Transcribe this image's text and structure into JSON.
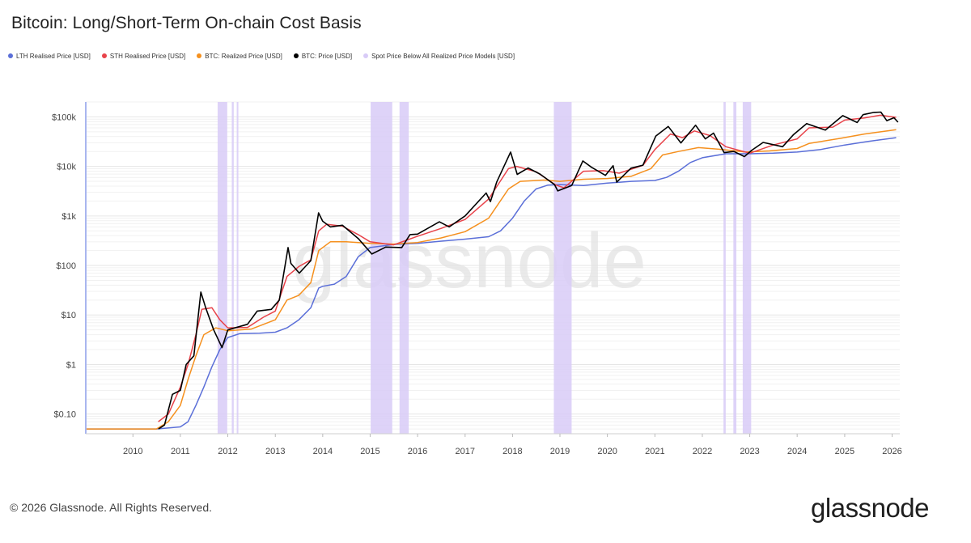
{
  "chart_data": {
    "type": "line",
    "title": "Bitcoin: Long/Short-Term On-chain Cost Basis",
    "y_scale": "log",
    "ylim": [
      0.04,
      200000
    ],
    "xlim": [
      "2009-01-03",
      "2026-03-01"
    ],
    "y_ticks": [
      {
        "value": 0.1,
        "label": "$0.10"
      },
      {
        "value": 1,
        "label": "$1"
      },
      {
        "value": 10,
        "label": "$10"
      },
      {
        "value": 100,
        "label": "$100"
      },
      {
        "value": 1000,
        "label": "$1k"
      },
      {
        "value": 10000,
        "label": "$10k"
      },
      {
        "value": 100000,
        "label": "$100k"
      }
    ],
    "x_ticks": [
      "2010",
      "2011",
      "2012",
      "2013",
      "2014",
      "2015",
      "2016",
      "2017",
      "2018",
      "2019",
      "2020",
      "2021",
      "2022",
      "2023",
      "2024",
      "2025",
      "2026"
    ],
    "grid": true,
    "legend_position": "top-left",
    "watermark": "glassnode",
    "series": [
      {
        "name": "LTH Realised Price [USD]",
        "color": "#5b6fd8",
        "points": [
          [
            "2009-01-03",
            0.05
          ],
          [
            "2010-07-01",
            0.05
          ],
          [
            "2011-01-01",
            0.055
          ],
          [
            "2011-03-01",
            0.07
          ],
          [
            "2011-05-01",
            0.15
          ],
          [
            "2011-07-01",
            0.35
          ],
          [
            "2011-09-01",
            0.9
          ],
          [
            "2011-11-01",
            2.0
          ],
          [
            "2012-01-01",
            3.5
          ],
          [
            "2012-04-01",
            4.2
          ],
          [
            "2012-09-01",
            4.3
          ],
          [
            "2013-01-01",
            4.5
          ],
          [
            "2013-04-01",
            5.5
          ],
          [
            "2013-07-01",
            8
          ],
          [
            "2013-10-01",
            14
          ],
          [
            "2013-12-01",
            35
          ],
          [
            "2014-01-01",
            38
          ],
          [
            "2014-04-01",
            42
          ],
          [
            "2014-07-01",
            60
          ],
          [
            "2014-10-01",
            150
          ],
          [
            "2015-01-01",
            230
          ],
          [
            "2015-07-01",
            265
          ],
          [
            "2016-01-01",
            280
          ],
          [
            "2016-07-01",
            310
          ],
          [
            "2017-01-01",
            340
          ],
          [
            "2017-07-01",
            380
          ],
          [
            "2017-10-01",
            500
          ],
          [
            "2018-01-01",
            900
          ],
          [
            "2018-04-01",
            2000
          ],
          [
            "2018-07-01",
            3500
          ],
          [
            "2018-10-01",
            4200
          ],
          [
            "2019-01-01",
            4300
          ],
          [
            "2019-07-01",
            4100
          ],
          [
            "2020-01-01",
            4600
          ],
          [
            "2020-07-01",
            5000
          ],
          [
            "2021-01-01",
            5200
          ],
          [
            "2021-04-01",
            6000
          ],
          [
            "2021-07-01",
            8000
          ],
          [
            "2021-10-01",
            12000
          ],
          [
            "2022-01-01",
            15000
          ],
          [
            "2022-07-01",
            18000
          ],
          [
            "2023-01-01",
            18000
          ],
          [
            "2023-07-01",
            18500
          ],
          [
            "2024-01-01",
            19500
          ],
          [
            "2024-07-01",
            22000
          ],
          [
            "2025-01-01",
            27000
          ],
          [
            "2025-07-01",
            32000
          ],
          [
            "2026-02-01",
            38000
          ]
        ]
      },
      {
        "name": "STH Realised Price [USD]",
        "color": "#e8434a",
        "points": [
          [
            "2010-07-15",
            0.07
          ],
          [
            "2010-10-01",
            0.1
          ],
          [
            "2011-01-01",
            0.35
          ],
          [
            "2011-03-01",
            1.0
          ],
          [
            "2011-05-01",
            4
          ],
          [
            "2011-06-15",
            13
          ],
          [
            "2011-09-01",
            14
          ],
          [
            "2011-11-01",
            8
          ],
          [
            "2012-01-01",
            5.5
          ],
          [
            "2012-06-01",
            5.6
          ],
          [
            "2012-10-01",
            9
          ],
          [
            "2013-01-01",
            12
          ],
          [
            "2013-04-01",
            60
          ],
          [
            "2013-07-01",
            95
          ],
          [
            "2013-10-01",
            130
          ],
          [
            "2013-12-01",
            500
          ],
          [
            "2014-02-01",
            680
          ],
          [
            "2014-06-01",
            620
          ],
          [
            "2014-10-01",
            420
          ],
          [
            "2015-01-01",
            300
          ],
          [
            "2015-07-01",
            260
          ],
          [
            "2016-01-01",
            390
          ],
          [
            "2016-07-01",
            560
          ],
          [
            "2017-01-01",
            850
          ],
          [
            "2017-07-01",
            2200
          ],
          [
            "2017-12-01",
            9000
          ],
          [
            "2018-02-01",
            10000
          ],
          [
            "2018-07-01",
            7800
          ],
          [
            "2018-12-01",
            4200
          ],
          [
            "2019-02-01",
            3700
          ],
          [
            "2019-07-01",
            8000
          ],
          [
            "2019-12-01",
            8200
          ],
          [
            "2020-04-01",
            7300
          ],
          [
            "2020-10-01",
            10500
          ],
          [
            "2021-01-01",
            22000
          ],
          [
            "2021-05-01",
            45000
          ],
          [
            "2021-08-01",
            38000
          ],
          [
            "2021-11-01",
            52000
          ],
          [
            "2022-03-01",
            42000
          ],
          [
            "2022-07-01",
            25000
          ],
          [
            "2023-01-01",
            18500
          ],
          [
            "2023-07-01",
            27000
          ],
          [
            "2024-01-01",
            36000
          ],
          [
            "2024-04-01",
            60000
          ],
          [
            "2024-10-01",
            62000
          ],
          [
            "2025-01-01",
            86000
          ],
          [
            "2025-06-01",
            95000
          ],
          [
            "2025-10-01",
            108000
          ],
          [
            "2026-02-01",
            98000
          ]
        ]
      },
      {
        "name": "BTC: Realized Price [USD]",
        "color": "#f5901e",
        "points": [
          [
            "2009-01-03",
            0.05
          ],
          [
            "2010-07-01",
            0.05
          ],
          [
            "2010-10-01",
            0.07
          ],
          [
            "2011-01-01",
            0.15
          ],
          [
            "2011-03-01",
            0.5
          ],
          [
            "2011-05-01",
            1.5
          ],
          [
            "2011-07-01",
            4
          ],
          [
            "2011-10-01",
            5.5
          ],
          [
            "2012-01-01",
            4.8
          ],
          [
            "2012-07-01",
            5.2
          ],
          [
            "2013-01-01",
            8
          ],
          [
            "2013-04-01",
            20
          ],
          [
            "2013-07-01",
            25
          ],
          [
            "2013-10-01",
            45
          ],
          [
            "2013-12-01",
            200
          ],
          [
            "2014-03-01",
            300
          ],
          [
            "2014-07-01",
            300
          ],
          [
            "2015-01-01",
            280
          ],
          [
            "2015-07-01",
            270
          ],
          [
            "2016-01-01",
            290
          ],
          [
            "2016-07-01",
            360
          ],
          [
            "2017-01-01",
            480
          ],
          [
            "2017-07-01",
            900
          ],
          [
            "2017-12-01",
            3500
          ],
          [
            "2018-03-01",
            5000
          ],
          [
            "2018-09-01",
            5300
          ],
          [
            "2019-01-01",
            5000
          ],
          [
            "2019-07-01",
            5500
          ],
          [
            "2020-01-01",
            5700
          ],
          [
            "2020-07-01",
            6300
          ],
          [
            "2020-12-01",
            9000
          ],
          [
            "2021-03-01",
            17000
          ],
          [
            "2021-07-01",
            20000
          ],
          [
            "2021-12-01",
            24000
          ],
          [
            "2022-06-01",
            22000
          ],
          [
            "2022-12-01",
            19500
          ],
          [
            "2023-06-01",
            20500
          ],
          [
            "2024-01-01",
            23000
          ],
          [
            "2024-04-01",
            29000
          ],
          [
            "2024-12-01",
            37000
          ],
          [
            "2025-06-01",
            45000
          ],
          [
            "2026-02-01",
            55000
          ]
        ]
      },
      {
        "name": "BTC: Price [USD]",
        "color": "#000000",
        "points": [
          [
            "2010-07-17",
            0.05
          ],
          [
            "2010-09-01",
            0.06
          ],
          [
            "2010-11-01",
            0.25
          ],
          [
            "2011-01-01",
            0.3
          ],
          [
            "2011-02-15",
            1.0
          ],
          [
            "2011-04-15",
            1.5
          ],
          [
            "2011-06-08",
            29
          ],
          [
            "2011-07-15",
            14
          ],
          [
            "2011-09-15",
            5
          ],
          [
            "2011-11-18",
            2.2
          ],
          [
            "2012-01-01",
            5
          ],
          [
            "2012-06-01",
            6.5
          ],
          [
            "2012-08-15",
            12
          ],
          [
            "2012-12-01",
            13
          ],
          [
            "2013-02-01",
            20
          ],
          [
            "2013-04-09",
            230
          ],
          [
            "2013-05-01",
            110
          ],
          [
            "2013-07-05",
            70
          ],
          [
            "2013-10-01",
            125
          ],
          [
            "2013-11-30",
            1150
          ],
          [
            "2014-01-01",
            780
          ],
          [
            "2014-03-01",
            600
          ],
          [
            "2014-06-01",
            650
          ],
          [
            "2014-10-01",
            350
          ],
          [
            "2015-01-14",
            170
          ],
          [
            "2015-05-01",
            235
          ],
          [
            "2015-09-01",
            230
          ],
          [
            "2015-11-04",
            420
          ],
          [
            "2016-01-01",
            430
          ],
          [
            "2016-06-17",
            760
          ],
          [
            "2016-09-01",
            600
          ],
          [
            "2017-01-01",
            1000
          ],
          [
            "2017-06-12",
            2900
          ],
          [
            "2017-07-15",
            1950
          ],
          [
            "2017-09-01",
            4800
          ],
          [
            "2017-12-17",
            19500
          ],
          [
            "2018-02-06",
            6900
          ],
          [
            "2018-05-01",
            9300
          ],
          [
            "2018-08-01",
            7000
          ],
          [
            "2018-11-20",
            4300
          ],
          [
            "2018-12-15",
            3200
          ],
          [
            "2019-04-01",
            4100
          ],
          [
            "2019-06-26",
            12900
          ],
          [
            "2019-09-01",
            9600
          ],
          [
            "2019-12-17",
            6600
          ],
          [
            "2020-02-14",
            10300
          ],
          [
            "2020-03-13",
            4800
          ],
          [
            "2020-07-01",
            9200
          ],
          [
            "2020-10-01",
            10600
          ],
          [
            "2021-01-08",
            41000
          ],
          [
            "2021-04-14",
            64000
          ],
          [
            "2021-07-20",
            29800
          ],
          [
            "2021-11-10",
            68000
          ],
          [
            "2022-01-24",
            36000
          ],
          [
            "2022-03-28",
            47000
          ],
          [
            "2022-06-18",
            19000
          ],
          [
            "2022-09-01",
            20000
          ],
          [
            "2022-11-21",
            15800
          ],
          [
            "2023-01-15",
            21000
          ],
          [
            "2023-04-14",
            30500
          ],
          [
            "2023-09-11",
            25000
          ],
          [
            "2023-12-05",
            44000
          ],
          [
            "2024-03-14",
            73000
          ],
          [
            "2024-08-05",
            54000
          ],
          [
            "2024-12-17",
            106000
          ],
          [
            "2025-04-07",
            77000
          ],
          [
            "2025-05-22",
            111000
          ],
          [
            "2025-08-14",
            123000
          ],
          [
            "2025-10-06",
            125000
          ],
          [
            "2025-11-21",
            84000
          ],
          [
            "2026-01-15",
            96000
          ],
          [
            "2026-02-15",
            78000
          ]
        ]
      }
    ],
    "shaded_regions": {
      "name": "Spot Price Below All Realized Price Models [USD]",
      "color": "#d8cbf7",
      "ranges": [
        [
          "2011-10-15",
          "2011-12-28"
        ],
        [
          "2012-02-01",
          "2012-02-16"
        ],
        [
          "2012-03-10",
          "2012-03-22"
        ],
        [
          "2015-01-05",
          "2015-06-20"
        ],
        [
          "2015-08-15",
          "2015-10-25"
        ],
        [
          "2018-11-15",
          "2019-04-01"
        ],
        [
          "2022-06-13",
          "2022-06-30"
        ],
        [
          "2022-08-28",
          "2022-09-20"
        ],
        [
          "2022-11-08",
          "2023-01-12"
        ]
      ]
    }
  },
  "footer": {
    "copyright": "© 2026 Glassnode. All Rights Reserved.",
    "brand": "glassnode"
  }
}
